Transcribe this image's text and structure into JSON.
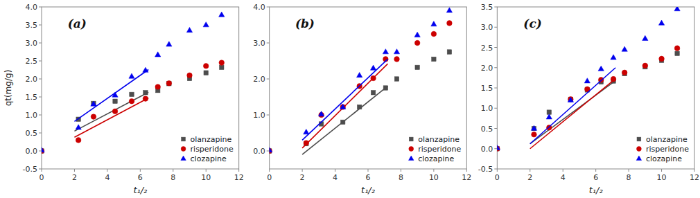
{
  "chart_data": [
    {
      "type": "scatter",
      "annotations": [
        "(a)"
      ],
      "xlabel": "t₁/₂",
      "ylabel": "qt(mg/g)",
      "xlim": [
        0,
        12
      ],
      "xticks": [
        0,
        2,
        4,
        6,
        8,
        10,
        12
      ],
      "ylim": [
        -0.5,
        4.0
      ],
      "yticks": [
        -0.5,
        {
          "value": 0.0,
          "label": "0.0"
        },
        0.5,
        {
          "value": 1.0,
          "label": "1.0"
        },
        1.5,
        {
          "value": 2.0,
          "label": "2.0"
        },
        2.5,
        {
          "value": 3.0,
          "label": "3.0"
        },
        3.5,
        {
          "value": 4.0,
          "label": "4.0"
        }
      ],
      "grid": false,
      "legend": "lower right",
      "series": [
        {
          "name": "olanzapine",
          "type": "scatter",
          "marker": "square",
          "color": "#4d4d4d",
          "x": [
            0,
            2.24,
            3.16,
            4.47,
            5.48,
            6.32,
            7.07,
            7.75,
            9.0,
            10.0,
            10.95
          ],
          "values": [
            0.0,
            0.88,
            1.32,
            1.38,
            1.57,
            1.62,
            1.68,
            1.87,
            2.01,
            2.17,
            2.32
          ]
        },
        {
          "type": "line",
          "color": "#4d4d4d",
          "x": [
            2.0,
            6.5
          ],
          "values": [
            0.55,
            1.63
          ]
        },
        {
          "name": "risperidone",
          "type": "scatter",
          "marker": "circle",
          "color": "#cc0000",
          "x": [
            0,
            2.24,
            3.16,
            4.47,
            5.48,
            6.32,
            7.07,
            7.75,
            9.0,
            10.0,
            10.95
          ],
          "values": [
            0.0,
            0.3,
            0.95,
            1.1,
            1.38,
            1.45,
            1.78,
            1.88,
            2.1,
            2.36,
            2.45
          ]
        },
        {
          "type": "line",
          "color": "#cc0000",
          "x": [
            2.0,
            6.5
          ],
          "values": [
            0.38,
            1.47
          ]
        },
        {
          "name": "clozapine",
          "type": "scatter",
          "marker": "triangle",
          "color": "#0000ee",
          "x": [
            0,
            2.24,
            3.16,
            4.47,
            5.48,
            6.32,
            7.07,
            7.75,
            9.0,
            10.0,
            10.95
          ],
          "values": [
            0.02,
            0.65,
            1.3,
            1.55,
            2.07,
            2.24,
            2.67,
            2.96,
            3.35,
            3.5,
            3.78
          ]
        },
        {
          "type": "line",
          "color": "#0000ee",
          "x": [
            2.0,
            6.5
          ],
          "values": [
            0.82,
            2.26
          ]
        }
      ]
    },
    {
      "type": "scatter",
      "annotations": [
        "(b)"
      ],
      "xlabel": "t₁/₂",
      "xlim": [
        0,
        12
      ],
      "xticks": [
        0,
        2,
        4,
        6,
        8,
        10,
        12
      ],
      "ylim": [
        -0.5,
        4.0
      ],
      "yticks": [
        {
          "value": 0.0,
          "label": "0.0"
        },
        {
          "value": 1.0,
          "label": "1.0"
        },
        {
          "value": 2.0,
          "label": "2.0"
        },
        {
          "value": 3.0,
          "label": "3.0"
        },
        {
          "value": 4.0,
          "label": "4.0"
        }
      ],
      "grid": false,
      "legend": "lower right",
      "series": [
        {
          "name": "olanzapine",
          "type": "scatter",
          "marker": "square",
          "color": "#4d4d4d",
          "x": [
            0,
            2.24,
            3.16,
            4.47,
            5.48,
            6.32,
            7.07,
            7.75,
            9.0,
            10.0,
            10.95
          ],
          "values": [
            0.0,
            0.2,
            0.75,
            0.8,
            1.22,
            1.62,
            1.75,
            2.0,
            2.32,
            2.55,
            2.75
          ]
        },
        {
          "type": "line",
          "color": "#4d4d4d",
          "x": [
            2.0,
            7.2
          ],
          "values": [
            -0.1,
            1.8
          ]
        },
        {
          "name": "risperidone",
          "type": "scatter",
          "marker": "circle",
          "color": "#cc0000",
          "x": [
            0,
            2.24,
            3.16,
            4.47,
            5.48,
            6.32,
            7.07,
            7.75,
            9.0,
            10.0,
            10.95
          ],
          "values": [
            0.0,
            0.22,
            1.0,
            1.22,
            1.8,
            2.02,
            2.55,
            2.55,
            3.0,
            3.25,
            3.55
          ]
        },
        {
          "type": "line",
          "color": "#cc0000",
          "x": [
            2.0,
            7.2
          ],
          "values": [
            0.08,
            2.42
          ]
        },
        {
          "name": "clozapine",
          "type": "scatter",
          "marker": "triangle",
          "color": "#0000ee",
          "x": [
            0,
            2.24,
            3.16,
            4.47,
            5.48,
            6.32,
            7.07,
            7.75,
            9.0,
            10.0,
            10.95
          ],
          "values": [
            0.02,
            0.52,
            1.02,
            1.22,
            2.1,
            2.3,
            2.75,
            2.75,
            3.22,
            3.52,
            3.9
          ]
        },
        {
          "type": "line",
          "color": "#0000ee",
          "x": [
            2.0,
            7.2
          ],
          "values": [
            0.3,
            2.55
          ]
        }
      ]
    },
    {
      "type": "scatter",
      "annotations": [
        "(c)"
      ],
      "xlabel": "t₁/₂",
      "xlim": [
        0,
        12
      ],
      "xticks": [
        0,
        2,
        4,
        6,
        8,
        10,
        12
      ],
      "ylim": [
        -0.5,
        3.5
      ],
      "yticks": [
        -0.5,
        {
          "value": 0.0,
          "label": "0.0"
        },
        0.5,
        {
          "value": 1.0,
          "label": "1.0"
        },
        1.5,
        {
          "value": 2.0,
          "label": "2.0"
        },
        2.5,
        {
          "value": 3.0,
          "label": "3.0"
        },
        3.5
      ],
      "grid": false,
      "legend": "lower right",
      "series": [
        {
          "name": "olanzapine",
          "type": "scatter",
          "marker": "square",
          "color": "#4d4d4d",
          "x": [
            0,
            2.24,
            3.16,
            4.47,
            5.48,
            6.32,
            7.07,
            7.75,
            9.0,
            10.0,
            10.95
          ],
          "values": [
            0.0,
            0.5,
            0.9,
            1.22,
            1.45,
            1.65,
            1.67,
            1.85,
            2.02,
            2.18,
            2.35
          ]
        },
        {
          "type": "line",
          "color": "#4d4d4d",
          "x": [
            2.0,
            7.2
          ],
          "values": [
            0.12,
            1.68
          ]
        },
        {
          "name": "risperidone",
          "type": "scatter",
          "marker": "circle",
          "color": "#cc0000",
          "x": [
            0,
            2.24,
            3.16,
            4.47,
            5.48,
            6.32,
            7.07,
            7.75,
            9.0,
            10.0,
            10.95
          ],
          "values": [
            0.0,
            0.35,
            0.52,
            1.22,
            1.47,
            1.7,
            1.72,
            1.88,
            2.05,
            2.22,
            2.48
          ]
        },
        {
          "type": "line",
          "color": "#cc0000",
          "x": [
            2.0,
            7.2
          ],
          "values": [
            0.0,
            1.73
          ]
        },
        {
          "name": "clozapine",
          "type": "scatter",
          "marker": "triangle",
          "color": "#0000ee",
          "x": [
            0,
            2.24,
            3.16,
            4.47,
            5.48,
            6.32,
            7.07,
            7.75,
            9.0,
            10.0,
            10.95
          ],
          "values": [
            0.02,
            0.5,
            0.78,
            1.2,
            1.67,
            1.97,
            2.25,
            2.45,
            2.72,
            3.1,
            3.45
          ]
        },
        {
          "type": "line",
          "color": "#0000ee",
          "x": [
            2.0,
            7.2
          ],
          "values": [
            0.12,
            2.0
          ]
        }
      ]
    }
  ]
}
